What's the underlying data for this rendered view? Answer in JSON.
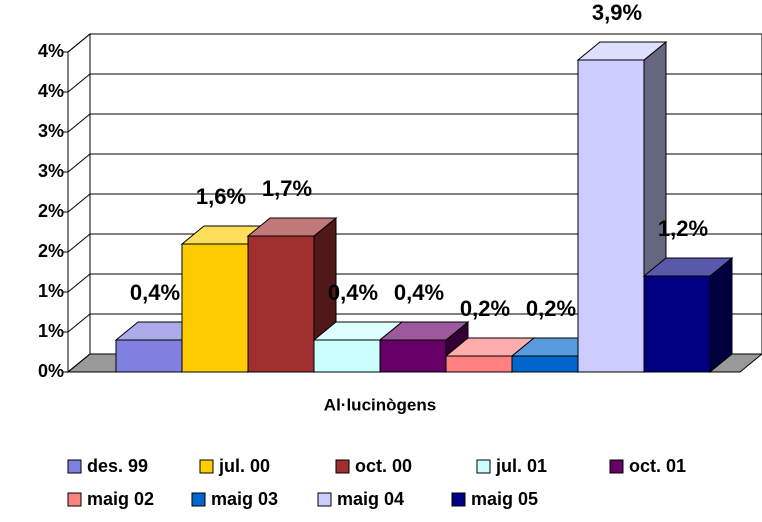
{
  "chart_data": {
    "type": "bar",
    "categories": [
      "Al·lucinògens"
    ],
    "series": [
      {
        "name": "des. 99",
        "color": "#8080e0",
        "values": [
          0.4
        ],
        "value_labels": [
          "0,4%"
        ]
      },
      {
        "name": "jul. 00",
        "color": "#ffcc00",
        "values": [
          1.6
        ],
        "value_labels": [
          "1,6%"
        ]
      },
      {
        "name": "oct. 00",
        "color": "#a03030",
        "values": [
          1.7
        ],
        "value_labels": [
          "1,7%"
        ]
      },
      {
        "name": "jul. 01",
        "color": "#ccffff",
        "values": [
          0.4
        ],
        "value_labels": [
          "0,4%"
        ]
      },
      {
        "name": "oct. 01",
        "color": "#660066",
        "values": [
          0.4
        ],
        "value_labels": [
          "0,4%"
        ]
      },
      {
        "name": "maig 02",
        "color": "#ff8080",
        "values": [
          0.2
        ],
        "value_labels": [
          "0,2%"
        ]
      },
      {
        "name": "maig 03",
        "color": "#0066cc",
        "values": [
          0.2
        ],
        "value_labels": [
          "0,2%"
        ]
      },
      {
        "name": "maig 04",
        "color": "#ccccff",
        "values": [
          3.9
        ],
        "value_labels": [
          "3,9%"
        ]
      },
      {
        "name": "maig 05",
        "color": "#000080",
        "values": [
          1.2
        ],
        "value_labels": [
          "1,2%"
        ]
      }
    ],
    "ylim": [
      0,
      4
    ],
    "yticks": [
      {
        "value": 0,
        "label": "0%"
      },
      {
        "value": 0.5,
        "label": "1%"
      },
      {
        "value": 1,
        "label": "1%"
      },
      {
        "value": 1.5,
        "label": "2%"
      },
      {
        "value": 2,
        "label": "2%"
      },
      {
        "value": 2.5,
        "label": "3%"
      },
      {
        "value": 3,
        "label": "3%"
      },
      {
        "value": 3.5,
        "label": "4%"
      },
      {
        "value": 4,
        "label": "4%"
      }
    ],
    "grid": true
  }
}
